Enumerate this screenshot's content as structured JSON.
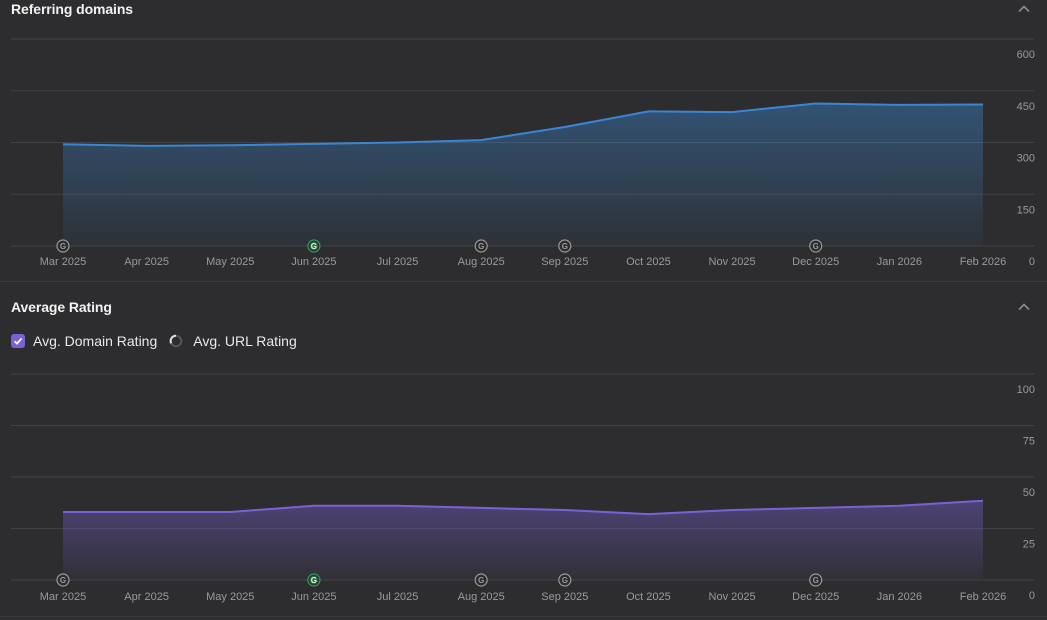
{
  "panels": {
    "referring_domains": {
      "title": "Referring domains"
    },
    "average_rating": {
      "title": "Average Rating",
      "legend": [
        {
          "label": "Avg. Domain Rating",
          "checked": true
        },
        {
          "label": "Avg. URL Rating",
          "checked": false
        }
      ]
    }
  },
  "colors": {
    "referring_line": "#3a86d4",
    "rating_line": "#7b61d6",
    "google_marker": "#9a9a9a",
    "google_marker_active": "#2f9e5a"
  },
  "chart_data": [
    {
      "type": "area",
      "title": "Referring domains",
      "categories": [
        "Mar 2025",
        "Apr 2025",
        "May 2025",
        "Jun 2025",
        "Jul 2025",
        "Aug 2025",
        "Sep 2025",
        "Oct 2025",
        "Nov 2025",
        "Dec 2025",
        "Jan 2026",
        "Feb 2026"
      ],
      "y_ticks": [
        "0",
        "150",
        "300",
        "450",
        "600"
      ],
      "ylim": [
        0,
        600
      ],
      "grid": true,
      "series": [
        {
          "values": [
            295,
            290,
            292,
            296,
            300,
            307,
            345,
            390,
            388,
            413,
            409,
            410
          ]
        }
      ],
      "google_markers": [
        {
          "category": "Mar 2025",
          "active": false
        },
        {
          "category": "Jun 2025",
          "active": true
        },
        {
          "category": "Aug 2025",
          "active": false
        },
        {
          "category": "Sep 2025",
          "active": false
        },
        {
          "category": "Dec 2025",
          "active": false
        }
      ]
    },
    {
      "type": "area",
      "title": "Average Rating",
      "categories": [
        "Mar 2025",
        "Apr 2025",
        "May 2025",
        "Jun 2025",
        "Jul 2025",
        "Aug 2025",
        "Sep 2025",
        "Oct 2025",
        "Nov 2025",
        "Dec 2025",
        "Jan 2026",
        "Feb 2026"
      ],
      "y_ticks": [
        "0",
        "25",
        "50",
        "75",
        "100"
      ],
      "ylim": [
        0,
        100
      ],
      "grid": true,
      "series": [
        {
          "name": "Avg. Domain Rating",
          "values": [
            33,
            33,
            33,
            36,
            36,
            35,
            34,
            32,
            34,
            35,
            36,
            38.5
          ]
        }
      ],
      "google_markers": [
        {
          "category": "Mar 2025",
          "active": false
        },
        {
          "category": "Jun 2025",
          "active": true
        },
        {
          "category": "Aug 2025",
          "active": false
        },
        {
          "category": "Sep 2025",
          "active": false
        },
        {
          "category": "Dec 2025",
          "active": false
        }
      ]
    }
  ]
}
